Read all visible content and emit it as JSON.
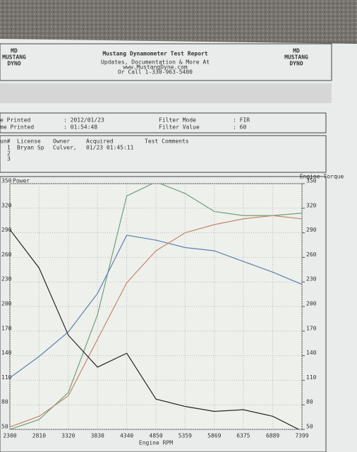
{
  "header": {
    "logo_left": [
      "MD",
      "MUSTANG",
      "DYNO"
    ],
    "logo_right": [
      "MD",
      "MUSTANG",
      "DYNO"
    ],
    "title": "Mustang Dynamometer Test Report",
    "lines": [
      "Updates, Documentation & More At",
      "www.MustangDyne.com",
      "Or Call 1-330-963-5400"
    ]
  },
  "info": {
    "rows": [
      [
        "e Printed",
        ": 2012/01/23",
        "Filter Mode",
        ": FIR"
      ],
      [
        "me Printed",
        ": 01:54:48",
        "Filter Value",
        ": 60"
      ]
    ]
  },
  "runs": {
    "columns": [
      "un#",
      "License",
      "Owner",
      "Acquired",
      "Test Comments"
    ],
    "rows": [
      [
        "1",
        "Bryan Sp",
        "Culver,",
        "01/23 01:45:11"
      ],
      [
        "2"
      ],
      [
        "3"
      ]
    ]
  },
  "chart_data": {
    "type": "line",
    "ylabel": "Power",
    "y2label": "Engine Torque",
    "xlabel": "Engine RPM",
    "x": [
      2300,
      2810,
      3320,
      3830,
      4340,
      4850,
      5359,
      5869,
      6375,
      6889,
      7399
    ],
    "xlim": [
      2300,
      7399
    ],
    "xticks": [
      2300,
      2810,
      3320,
      3830,
      4340,
      4850,
      5359,
      5869,
      6375,
      6889,
      7399
    ],
    "ylim": [
      50,
      350
    ],
    "yticks": [
      50,
      80,
      110,
      140,
      170,
      200,
      230,
      260,
      290,
      320,
      350
    ],
    "y2lim": [
      50,
      350
    ],
    "y2ticks": [
      50,
      80,
      110,
      140,
      170,
      200,
      230,
      260,
      290,
      320,
      350
    ],
    "grid": true,
    "series": [
      {
        "color": "#6f9f78",
        "values": [
          50,
          62,
          95,
          190,
          335,
          352,
          338,
          316,
          311,
          311,
          314
        ]
      },
      {
        "color": "#5f7fae",
        "values": [
          113,
          139,
          169,
          216,
          287,
          281,
          272,
          268,
          255,
          242,
          227
        ]
      },
      {
        "color": "#c4876a",
        "axis": "y2",
        "values": [
          53,
          66,
          91,
          160,
          229,
          268,
          290,
          300,
          307,
          311,
          307
        ]
      },
      {
        "color": "#262626",
        "values": [
          294,
          247,
          165,
          126,
          143,
          87,
          78,
          72,
          74,
          66,
          48
        ]
      }
    ]
  }
}
